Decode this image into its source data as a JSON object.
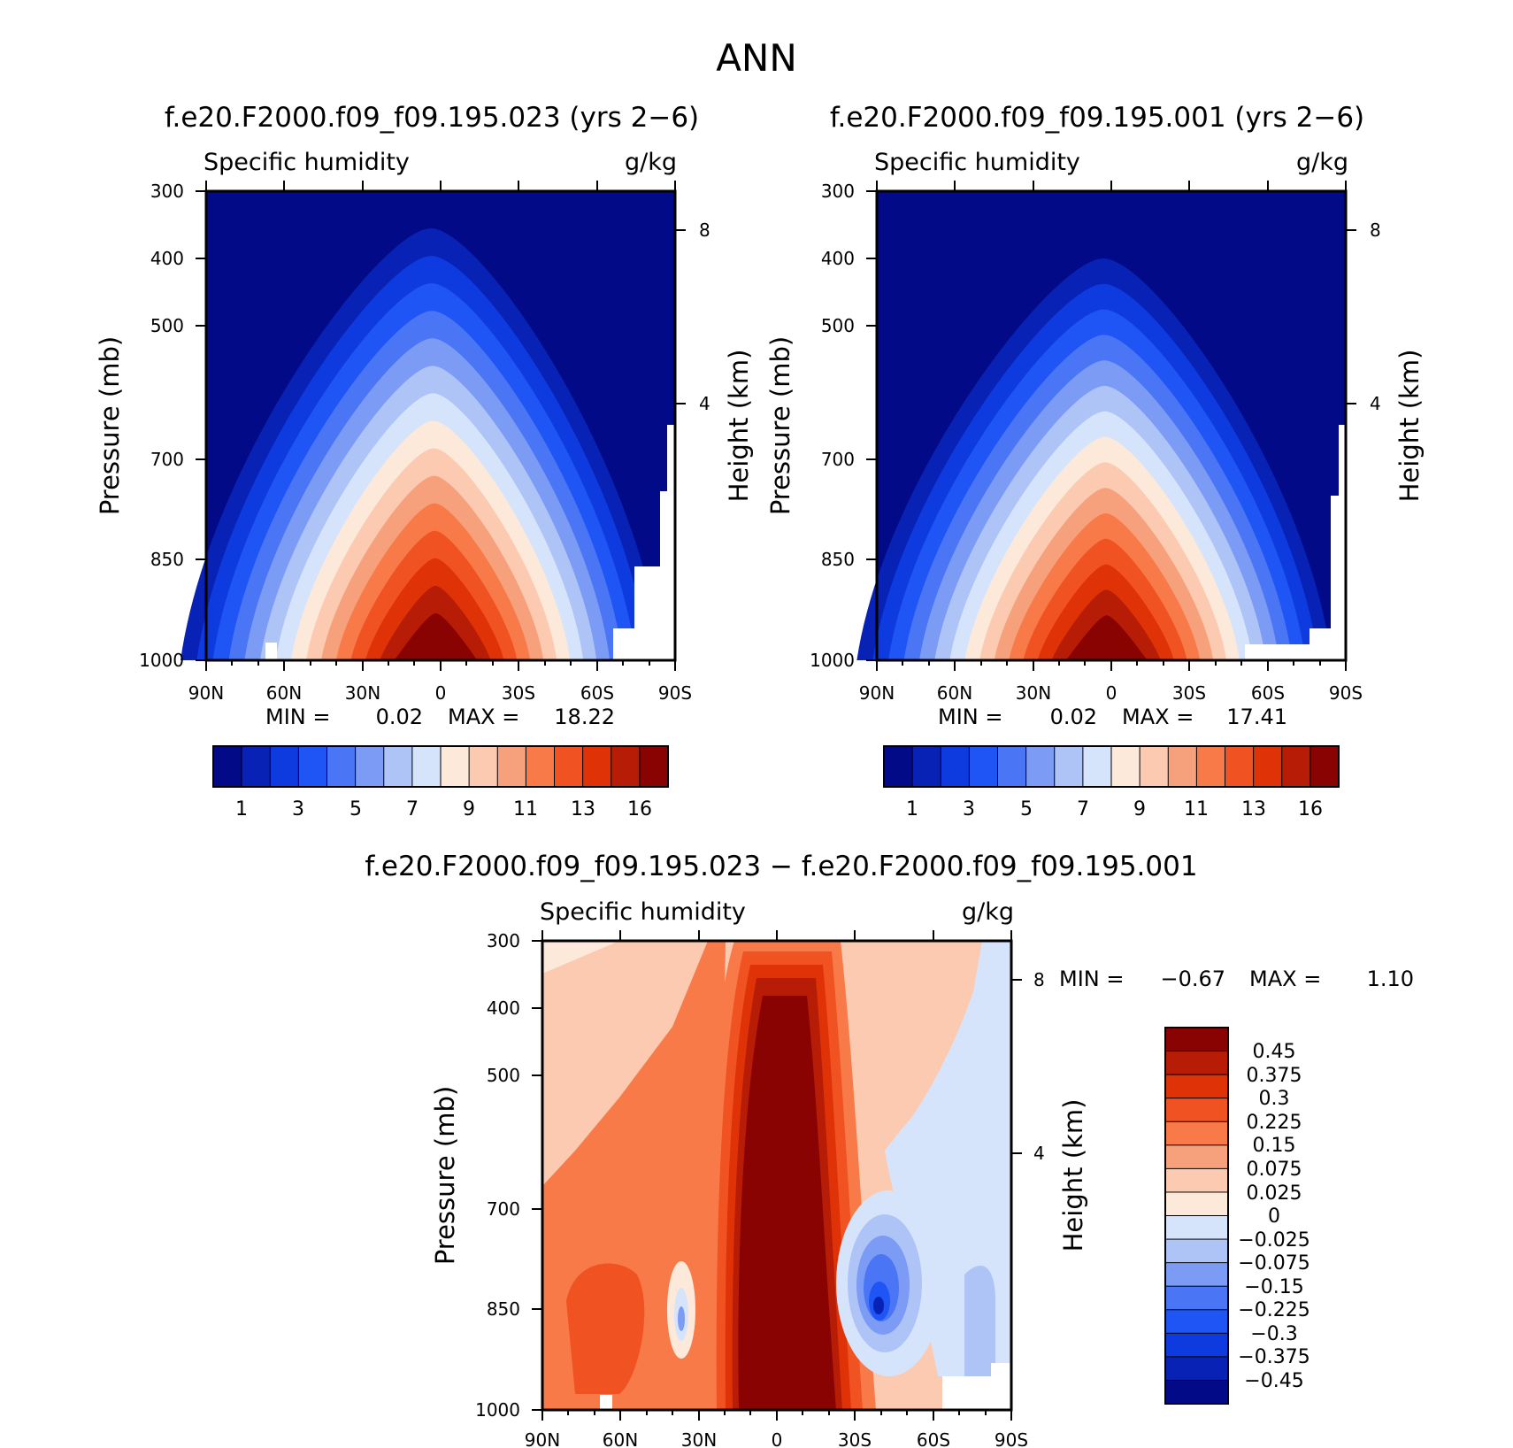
{
  "figure_title": "ANN",
  "chart_data": [
    {
      "type": "contour",
      "title": "f.e20.F2000.f09_f09.195.023 (yrs 2−6)",
      "variable": "Specific humidity",
      "units": "g/kg",
      "ylabel": "Pressure (mb)",
      "ylabel_right": "Height (km)",
      "x_ticks": [
        "90N",
        "60N",
        "30N",
        "0",
        "30S",
        "60S",
        "90S"
      ],
      "y_ticks": [
        "300",
        "400",
        "500",
        "700",
        "850",
        "1000"
      ],
      "y_ticks_right": [
        "8",
        "4"
      ],
      "min_label": "MIN =",
      "min_value": "0.02",
      "max_label": "MAX =",
      "max_value": "18.22",
      "colorbar_labels": [
        "1",
        "3",
        "5",
        "7",
        "9",
        "11",
        "13",
        "16"
      ],
      "contour_levels": [
        1,
        2,
        3,
        4,
        5,
        6,
        7,
        8,
        9,
        10,
        11,
        12,
        13,
        14,
        16
      ],
      "peak_value": 18.22
    },
    {
      "type": "contour",
      "title": "f.e20.F2000.f09_f09.195.001 (yrs 2−6)",
      "variable": "Specific humidity",
      "units": "g/kg",
      "ylabel": "Pressure (mb)",
      "ylabel_right": "Height (km)",
      "x_ticks": [
        "90N",
        "60N",
        "30N",
        "0",
        "30S",
        "60S",
        "90S"
      ],
      "y_ticks": [
        "300",
        "400",
        "500",
        "700",
        "850",
        "1000"
      ],
      "y_ticks_right": [
        "8",
        "4"
      ],
      "min_label": "MIN =",
      "min_value": "0.02",
      "max_label": "MAX =",
      "max_value": "17.41",
      "colorbar_labels": [
        "1",
        "3",
        "5",
        "7",
        "9",
        "11",
        "13",
        "16"
      ],
      "contour_levels": [
        1,
        2,
        3,
        4,
        5,
        6,
        7,
        8,
        9,
        10,
        11,
        12,
        13,
        14,
        16
      ],
      "peak_value": 17.41
    },
    {
      "type": "contour-difference",
      "title": "f.e20.F2000.f09_f09.195.023 − f.e20.F2000.f09_f09.195.001",
      "variable": "Specific humidity",
      "units": "g/kg",
      "ylabel": "Pressure (mb)",
      "ylabel_right": "Height (km)",
      "x_ticks": [
        "90N",
        "60N",
        "30N",
        "0",
        "30S",
        "60S",
        "90S"
      ],
      "y_ticks": [
        "300",
        "400",
        "500",
        "700",
        "850",
        "1000"
      ],
      "y_ticks_right": [
        "8",
        "4"
      ],
      "min_label": "MIN =",
      "min_value": "−0.67",
      "max_label": "MAX =",
      "max_value": "1.10",
      "colorbar_labels": [
        "0.45",
        "0.375",
        "0.3",
        "0.225",
        "0.15",
        "0.075",
        "0.025",
        "0",
        "−0.025",
        "−0.075",
        "−0.15",
        "−0.225",
        "−0.3",
        "−0.375",
        "−0.45"
      ]
    }
  ],
  "colors": {
    "seq": [
      "#020a87",
      "#0722b5",
      "#0e3be0",
      "#1f55f5",
      "#4a76f5",
      "#7b9bf5",
      "#aec4f7",
      "#d6e4fb",
      "#fde9da",
      "#fccab0",
      "#f7a17c",
      "#f87a48",
      "#f15221",
      "#e03207",
      "#b71d06",
      "#8a0303"
    ],
    "diff": [
      "#8a0303",
      "#b71d06",
      "#e03207",
      "#f15221",
      "#f87a48",
      "#f7a17c",
      "#fccab0",
      "#fde9da",
      "#d6e4fb",
      "#aec4f7",
      "#7b9bf5",
      "#4a76f5",
      "#1f55f5",
      "#0e3be0",
      "#0722b5",
      "#020a87"
    ]
  }
}
